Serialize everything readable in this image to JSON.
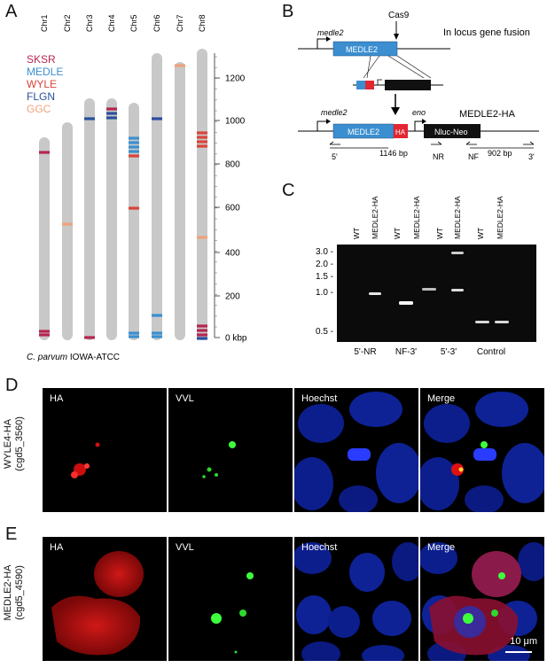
{
  "panels": {
    "a": "A",
    "b": "B",
    "c": "C",
    "d": "D",
    "e": "E"
  },
  "panelA": {
    "chromosomes": [
      "Chr1",
      "Chr2",
      "Chr3",
      "Chr4",
      "Chr5",
      "Chr6",
      "Chr7",
      "Chr8"
    ],
    "legend": [
      {
        "label": "SKSR",
        "color": "#b5264f"
      },
      {
        "label": "MEDLE",
        "color": "#3b8fd0"
      },
      {
        "label": "WYLE",
        "color": "#d9443a"
      },
      {
        "label": "FLGN",
        "color": "#2a4f9c"
      },
      {
        "label": "GGC",
        "color": "#f0a27a"
      }
    ],
    "scale_ticks": [
      "1200",
      "1000",
      "800",
      "600",
      "400",
      "200",
      "0 kbp"
    ],
    "caption_species": "C. parvum",
    "caption_strain": " IOWA-ATCC"
  },
  "panelB": {
    "gene_top": "medle2",
    "cas9": "Cas9",
    "title": "In locus gene fusion",
    "medle2_box": "MEDLE2",
    "gene_bottom": "medle2",
    "eno": "eno",
    "result_title": "MEDLE2-HA",
    "medle2_box2": "MEDLE2",
    "ha_box": "HA",
    "nluc_box": "Nluc-Neo",
    "primer_5": "5'",
    "size_1": "1146 bp",
    "primer_nr": "NR",
    "primer_nf": "NF",
    "size_2": "902 bp",
    "primer_3": "3'"
  },
  "panelC": {
    "lanes": [
      "WT",
      "MEDLE2-HA",
      "WT",
      "MEDLE2-HA",
      "WT",
      "MEDLE2-HA",
      "WT",
      "MEDLE2-HA"
    ],
    "markers": [
      "3.0 -",
      "2.0 -",
      "1.5 -",
      "1.0 -",
      "0.5 -"
    ],
    "groups": [
      "5'-NR",
      "NF-3'",
      "5'-3'",
      "Control"
    ]
  },
  "panelD": {
    "row_label_1": "WYLE4-HA",
    "row_label_2": "(cgd5_3560)",
    "channels": [
      "HA",
      "VVL",
      "Hoechst",
      "Merge"
    ]
  },
  "panelE": {
    "row_label_1": "MEDLE2-HA",
    "row_label_2": "(cgd5_4590)",
    "channels": [
      "HA",
      "VVL",
      "Hoechst",
      "Merge"
    ],
    "scalebar": "10 μm"
  }
}
